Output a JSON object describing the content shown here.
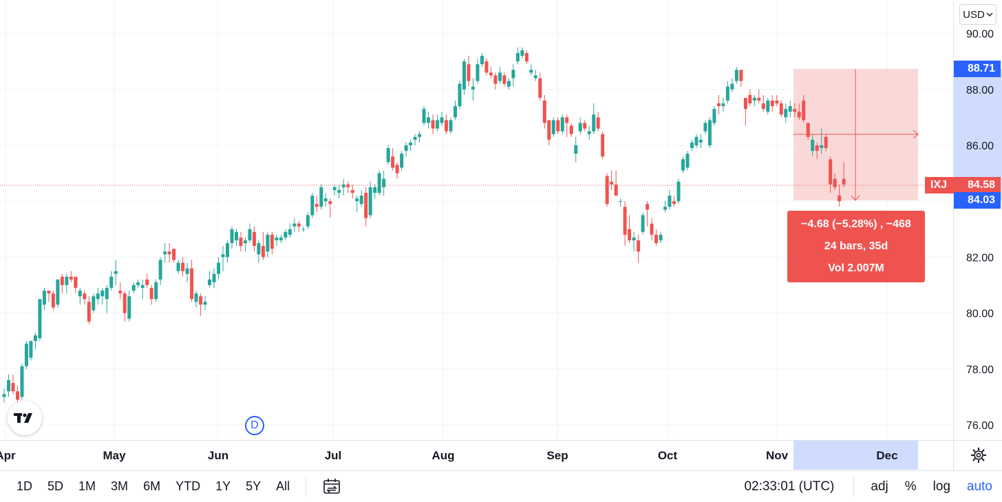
{
  "currency_selector": {
    "label": "USD",
    "icon": "chevron-down-icon"
  },
  "symbol": "IXJ",
  "last_price": "84.58",
  "measure_top_label": "88.71",
  "measure_bottom_label": "84.03",
  "measure": {
    "change": "−4.68 (−5.28%) , −468",
    "bars": "24 bars, 35d",
    "volume": "Vol 2.007M"
  },
  "interval_marker": "D",
  "time_display": "02:33:01 (UTC)",
  "range_buttons": [
    "1D",
    "5D",
    "1M",
    "3M",
    "6M",
    "YTD",
    "1Y",
    "5Y",
    "All"
  ],
  "scale_options": [
    "adj",
    "%",
    "log",
    "auto"
  ],
  "active_scale_option": "auto",
  "colors": {
    "up": "#26a69a",
    "down": "#ef5350",
    "accent": "#2962ff",
    "measure_fill": "#f8d2d1",
    "highlight": "#cfdcfd"
  },
  "chart_data": {
    "type": "candlestick",
    "symbol": "IXJ",
    "x_tick_labels": [
      "Apr",
      "May",
      "Jun",
      "Jul",
      "Aug",
      "Sep",
      "Oct",
      "Nov",
      "Dec"
    ],
    "y_tick_labels": [
      "76.00",
      "78.00",
      "80.00",
      "82.00",
      "84.00",
      "86.00",
      "88.00",
      "90.00"
    ],
    "ylim": [
      75.6,
      90.6
    ],
    "grid": true,
    "candles": [
      [
        77.0,
        77.3,
        76.8,
        77.1
      ],
      [
        77.2,
        77.8,
        77.0,
        77.6
      ],
      [
        77.5,
        77.8,
        77.1,
        77.2
      ],
      [
        77.2,
        77.4,
        76.8,
        76.9
      ],
      [
        77.0,
        78.2,
        76.9,
        78.1
      ],
      [
        78.1,
        79.0,
        78.0,
        78.9
      ],
      [
        78.4,
        79.0,
        78.3,
        79.0
      ],
      [
        79.0,
        79.3,
        78.7,
        79.2
      ],
      [
        79.1,
        80.5,
        79.0,
        80.5
      ],
      [
        80.3,
        80.9,
        80.1,
        80.8
      ],
      [
        80.8,
        80.8,
        80.4,
        80.7
      ],
      [
        80.7,
        80.8,
        80.1,
        80.2
      ],
      [
        80.3,
        81.2,
        80.2,
        81.2
      ],
      [
        81.3,
        81.4,
        80.7,
        81.0
      ],
      [
        81.0,
        81.4,
        80.7,
        81.3
      ],
      [
        81.3,
        81.5,
        81.1,
        81.2
      ],
      [
        81.3,
        81.2,
        80.7,
        80.9
      ],
      [
        80.6,
        80.9,
        80.3,
        80.8
      ],
      [
        80.7,
        80.8,
        80.3,
        80.5
      ],
      [
        80.4,
        80.6,
        79.6,
        79.7
      ],
      [
        80.1,
        80.7,
        80.0,
        80.6
      ],
      [
        80.5,
        80.9,
        80.3,
        80.7
      ],
      [
        80.6,
        80.9,
        80.3,
        80.8
      ],
      [
        80.5,
        81.0,
        80.0,
        80.9
      ],
      [
        80.9,
        81.5,
        80.8,
        81.3
      ],
      [
        81.4,
        81.9,
        81.0,
        81.5
      ],
      [
        80.8,
        81.1,
        80.5,
        80.7
      ],
      [
        80.7,
        80.8,
        79.7,
        80.0
      ],
      [
        79.8,
        80.8,
        79.7,
        80.6
      ],
      [
        80.8,
        81.1,
        80.7,
        81.0
      ],
      [
        81.0,
        81.2,
        80.9,
        81.1
      ],
      [
        80.9,
        81.2,
        80.5,
        81.0
      ],
      [
        81.2,
        81.4,
        80.9,
        81.0
      ],
      [
        80.9,
        81.0,
        80.3,
        80.5
      ],
      [
        80.5,
        81.2,
        80.4,
        81.1
      ],
      [
        81.2,
        82.0,
        81.0,
        81.9
      ],
      [
        82.1,
        82.5,
        81.8,
        82.2
      ],
      [
        82.2,
        82.5,
        81.8,
        82.1
      ],
      [
        82.3,
        82.3,
        81.8,
        81.9
      ],
      [
        81.5,
        81.9,
        81.4,
        81.8
      ],
      [
        81.8,
        82.0,
        81.3,
        81.5
      ],
      [
        81.4,
        81.8,
        81.1,
        81.6
      ],
      [
        81.6,
        81.9,
        80.4,
        80.5
      ],
      [
        80.4,
        80.8,
        80.2,
        80.7
      ],
      [
        80.6,
        80.7,
        79.9,
        80.3
      ],
      [
        80.3,
        80.6,
        80.1,
        80.4
      ],
      [
        81.0,
        81.5,
        80.9,
        81.2
      ],
      [
        81.1,
        81.6,
        80.9,
        81.4
      ],
      [
        81.4,
        82.0,
        81.2,
        81.8
      ],
      [
        82.0,
        82.4,
        81.5,
        82.1
      ],
      [
        82.0,
        82.6,
        81.8,
        82.5
      ],
      [
        82.5,
        83.1,
        82.3,
        83.0
      ],
      [
        82.6,
        83.0,
        82.4,
        82.9
      ],
      [
        82.7,
        82.9,
        82.2,
        82.4
      ],
      [
        82.5,
        82.7,
        82.2,
        82.6
      ],
      [
        82.6,
        83.2,
        82.5,
        83.0
      ],
      [
        82.9,
        83.1,
        82.2,
        82.4
      ],
      [
        82.1,
        82.6,
        81.8,
        82.5
      ],
      [
        82.4,
        82.9,
        81.9,
        82.0
      ],
      [
        82.2,
        82.9,
        82.0,
        82.8
      ],
      [
        82.8,
        82.9,
        82.1,
        82.3
      ],
      [
        82.6,
        82.8,
        82.4,
        82.7
      ],
      [
        82.6,
        82.8,
        82.5,
        82.7
      ],
      [
        82.7,
        83.0,
        82.6,
        82.9
      ],
      [
        82.8,
        83.2,
        82.7,
        83.0
      ],
      [
        83.1,
        83.4,
        82.9,
        83.2
      ],
      [
        83.2,
        83.3,
        82.9,
        83.1
      ],
      [
        83.0,
        83.1,
        82.9,
        83.0
      ],
      [
        83.1,
        83.6,
        83.0,
        83.5
      ],
      [
        83.5,
        84.3,
        83.4,
        84.2
      ],
      [
        83.9,
        84.2,
        83.6,
        83.8
      ],
      [
        83.8,
        84.6,
        83.7,
        84.5
      ],
      [
        84.0,
        84.3,
        83.8,
        84.1
      ],
      [
        84.0,
        84.1,
        83.4,
        83.9
      ],
      [
        84.4,
        84.6,
        84.2,
        84.5
      ],
      [
        84.3,
        84.6,
        84.1,
        84.4
      ],
      [
        84.5,
        84.8,
        84.2,
        84.6
      ],
      [
        84.6,
        84.7,
        84.3,
        84.5
      ],
      [
        84.4,
        84.6,
        84.1,
        84.3
      ],
      [
        84.0,
        84.2,
        83.6,
        84.1
      ],
      [
        83.9,
        84.4,
        83.8,
        84.2
      ],
      [
        84.3,
        84.5,
        83.1,
        83.4
      ],
      [
        83.5,
        84.7,
        83.4,
        84.5
      ],
      [
        84.3,
        84.6,
        84.1,
        84.5
      ],
      [
        84.3,
        85.1,
        84.2,
        85.0
      ],
      [
        84.5,
        85.1,
        84.2,
        84.8
      ],
      [
        85.4,
        86.0,
        85.3,
        85.9
      ],
      [
        85.6,
        85.9,
        85.1,
        85.2
      ],
      [
        85.3,
        85.4,
        84.8,
        85.0
      ],
      [
        85.2,
        85.8,
        85.1,
        85.7
      ],
      [
        85.8,
        86.1,
        85.6,
        86.0
      ],
      [
        86.0,
        86.2,
        85.8,
        86.1
      ],
      [
        86.2,
        86.4,
        86.0,
        86.3
      ],
      [
        86.3,
        86.5,
        86.1,
        86.4
      ],
      [
        86.8,
        87.4,
        86.7,
        87.3
      ],
      [
        86.8,
        87.2,
        86.6,
        87.0
      ],
      [
        86.9,
        87.1,
        86.4,
        86.6
      ],
      [
        86.6,
        87.1,
        86.5,
        86.9
      ],
      [
        86.8,
        87.2,
        86.7,
        87.0
      ],
      [
        86.9,
        87.1,
        86.4,
        86.5
      ],
      [
        86.5,
        87.0,
        86.4,
        86.9
      ],
      [
        87.0,
        87.6,
        86.9,
        87.4
      ],
      [
        87.4,
        88.3,
        87.3,
        88.2
      ],
      [
        88.0,
        89.1,
        87.8,
        89.0
      ],
      [
        88.9,
        89.2,
        88.1,
        88.3
      ],
      [
        88.0,
        88.4,
        87.6,
        88.1
      ],
      [
        88.3,
        89.1,
        88.2,
        88.9
      ],
      [
        88.9,
        89.3,
        88.8,
        89.2
      ],
      [
        89.0,
        89.1,
        88.5,
        88.6
      ],
      [
        88.6,
        88.8,
        88.4,
        88.5
      ],
      [
        88.5,
        88.6,
        88.0,
        88.2
      ],
      [
        88.3,
        88.8,
        88.2,
        88.6
      ],
      [
        88.5,
        88.6,
        88.1,
        88.2
      ],
      [
        88.1,
        88.4,
        88.0,
        88.3
      ],
      [
        88.4,
        88.9,
        88.1,
        88.7
      ],
      [
        89.0,
        89.5,
        88.9,
        89.3
      ],
      [
        89.2,
        89.5,
        89.1,
        89.4
      ],
      [
        89.3,
        89.4,
        88.9,
        89.0
      ],
      [
        88.6,
        88.9,
        88.5,
        88.7
      ],
      [
        88.4,
        88.7,
        88.3,
        88.5
      ],
      [
        88.4,
        88.6,
        87.6,
        87.7
      ],
      [
        87.6,
        87.8,
        86.6,
        86.8
      ],
      [
        86.9,
        86.9,
        86.0,
        86.2
      ],
      [
        86.4,
        87.0,
        86.3,
        86.9
      ],
      [
        86.9,
        87.0,
        86.4,
        86.5
      ],
      [
        86.5,
        87.1,
        86.4,
        87.0
      ],
      [
        87.0,
        87.1,
        86.3,
        86.8
      ],
      [
        86.7,
        86.8,
        86.3,
        86.4
      ],
      [
        85.7,
        86.3,
        85.4,
        86.0
      ],
      [
        86.5,
        87.0,
        86.4,
        86.8
      ],
      [
        86.8,
        86.9,
        86.5,
        86.6
      ],
      [
        86.4,
        86.7,
        86.2,
        86.5
      ],
      [
        86.5,
        87.5,
        86.4,
        87.1
      ],
      [
        87.0,
        87.2,
        86.5,
        86.6
      ],
      [
        86.4,
        86.5,
        85.5,
        85.6
      ],
      [
        84.9,
        85.0,
        83.8,
        83.9
      ],
      [
        84.7,
        85.1,
        84.4,
        84.6
      ],
      [
        84.6,
        85.1,
        84.2,
        84.2
      ],
      [
        84.0,
        84.1,
        83.8,
        84.0
      ],
      [
        83.8,
        84.0,
        82.4,
        82.8
      ],
      [
        83.0,
        83.5,
        82.5,
        82.6
      ],
      [
        82.6,
        82.9,
        82.2,
        82.7
      ],
      [
        82.6,
        82.8,
        81.8,
        82.2
      ],
      [
        82.9,
        83.6,
        82.8,
        83.5
      ],
      [
        83.9,
        84.0,
        83.1,
        83.7
      ],
      [
        83.2,
        83.4,
        82.6,
        82.8
      ],
      [
        82.8,
        83.0,
        82.4,
        82.5
      ],
      [
        82.6,
        82.9,
        82.5,
        82.8
      ],
      [
        83.7,
        84.0,
        83.6,
        83.8
      ],
      [
        83.8,
        84.4,
        83.7,
        84.2
      ],
      [
        84.0,
        84.2,
        83.8,
        83.9
      ],
      [
        84.0,
        84.8,
        83.9,
        84.7
      ],
      [
        85.1,
        85.6,
        85.0,
        85.5
      ],
      [
        85.2,
        85.8,
        85.1,
        85.7
      ],
      [
        85.9,
        86.2,
        85.8,
        86.1
      ],
      [
        86.0,
        86.4,
        85.9,
        86.3
      ],
      [
        86.1,
        86.4,
        85.9,
        86.2
      ],
      [
        86.5,
        86.9,
        86.4,
        86.8
      ],
      [
        86.0,
        87.0,
        85.9,
        86.9
      ],
      [
        86.8,
        87.4,
        86.7,
        87.3
      ],
      [
        87.5,
        87.8,
        87.1,
        87.4
      ],
      [
        87.4,
        87.7,
        87.2,
        87.5
      ],
      [
        87.6,
        88.3,
        87.5,
        88.1
      ],
      [
        88.0,
        88.4,
        87.9,
        88.2
      ],
      [
        88.3,
        88.8,
        88.2,
        88.7
      ],
      [
        88.7,
        88.7,
        88.1,
        88.3
      ],
      [
        87.7,
        87.7,
        86.7,
        87.3
      ],
      [
        87.8,
        88.0,
        87.4,
        87.5
      ],
      [
        87.6,
        87.8,
        87.4,
        87.7
      ],
      [
        87.7,
        88.0,
        87.5,
        87.6
      ],
      [
        87.5,
        87.8,
        87.2,
        87.3
      ],
      [
        87.2,
        87.7,
        87.1,
        87.6
      ],
      [
        87.6,
        87.8,
        87.2,
        87.4
      ],
      [
        87.6,
        87.8,
        87.4,
        87.5
      ],
      [
        87.5,
        87.6,
        87.0,
        87.1
      ],
      [
        87.0,
        87.5,
        86.8,
        87.3
      ],
      [
        87.2,
        87.6,
        87.0,
        87.4
      ],
      [
        87.3,
        87.5,
        87.0,
        87.2
      ],
      [
        87.2,
        87.5,
        86.9,
        87.0
      ],
      [
        87.6,
        87.8,
        86.8,
        86.9
      ],
      [
        86.8,
        86.8,
        86.2,
        86.3
      ],
      [
        85.8,
        86.4,
        85.6,
        86.2
      ],
      [
        86.0,
        86.1,
        85.5,
        85.8
      ],
      [
        85.9,
        86.6,
        85.7,
        86.0
      ],
      [
        86.3,
        86.4,
        85.8,
        85.9
      ],
      [
        85.5,
        85.6,
        84.3,
        84.6
      ],
      [
        84.8,
        85.0,
        84.4,
        84.5
      ],
      [
        84.2,
        84.6,
        83.8,
        84.0
      ],
      [
        84.8,
        85.4,
        84.5,
        84.6
      ]
    ]
  }
}
